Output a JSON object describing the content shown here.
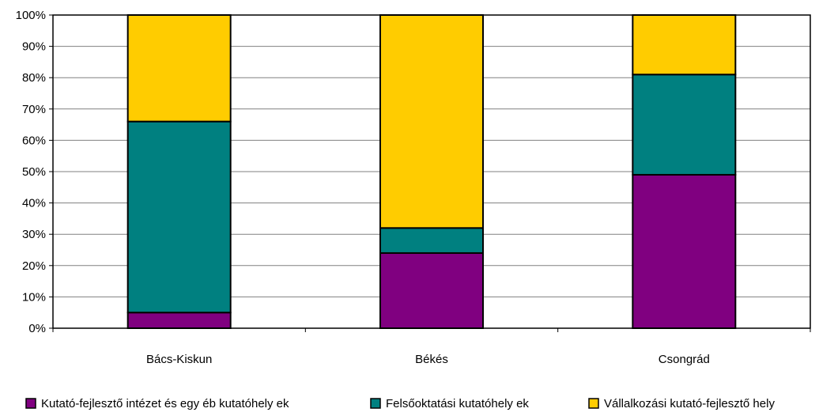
{
  "chart_data": {
    "type": "bar",
    "stacked": true,
    "percent_stacked": true,
    "title": "",
    "xlabel": "",
    "ylabel": "",
    "ylim": [
      0,
      100
    ],
    "yticks": [
      "0%",
      "10%",
      "20%",
      "30%",
      "40%",
      "50%",
      "60%",
      "70%",
      "80%",
      "90%",
      "100%"
    ],
    "grid": true,
    "legend_position": "bottom",
    "categories": [
      "Bács-Kiskun",
      "Békés",
      "Csongrád"
    ],
    "series": [
      {
        "name": "Kutató-fejlesztő intézet és egy éb kutatóhely ek",
        "color": "#800080",
        "values": [
          5,
          24,
          49
        ]
      },
      {
        "name": "Felsőoktatási kutatóhely ek",
        "color": "#008080",
        "values": [
          61,
          8,
          32
        ]
      },
      {
        "name": "Vállalkozási kutató-fejlesztő hely",
        "color": "#FFCC00",
        "values": [
          34,
          68,
          19
        ]
      }
    ]
  }
}
